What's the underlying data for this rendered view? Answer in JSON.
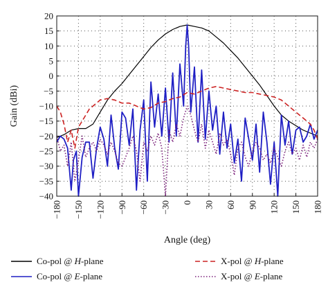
{
  "chart_data": {
    "type": "line",
    "xlabel": "Angle (deg)",
    "ylabel": "Gain (dBi)",
    "xlim": [
      -180,
      180
    ],
    "ylim": [
      -40,
      20
    ],
    "xticks": [
      "−180",
      "−150",
      "−120",
      "−90",
      "−60",
      "−30",
      "0",
      "30",
      "60",
      "90",
      "120",
      "150",
      "180"
    ],
    "yticks": [
      "20",
      "15",
      "10",
      "5",
      "0",
      "−5",
      "−10",
      "−15",
      "−20",
      "−25",
      "−30",
      "−35",
      "−40"
    ],
    "grid": true,
    "legend_position": "bottom",
    "series": [
      {
        "name": "Co-pol @ H-plane",
        "name_prefix": "Co-pol @ ",
        "name_italic": "H",
        "name_suffix": "-plane",
        "color": "#000000",
        "style": "solid",
        "x": [
          -180,
          -170,
          -160,
          -150,
          -140,
          -130,
          -120,
          -110,
          -100,
          -90,
          -80,
          -70,
          -60,
          -50,
          -40,
          -30,
          -20,
          -10,
          0,
          10,
          20,
          30,
          40,
          50,
          60,
          70,
          80,
          90,
          100,
          110,
          120,
          130,
          140,
          150,
          160,
          170,
          180
        ],
        "y": [
          -20.5,
          -19.5,
          -18,
          -17.5,
          -17.5,
          -16,
          -12,
          -8,
          -5,
          -2.5,
          0.5,
          3.5,
          6.5,
          9.5,
          12,
          14,
          15.5,
          16.5,
          17,
          16.5,
          16,
          15,
          13,
          11,
          8.5,
          6,
          3,
          0,
          -3,
          -6.5,
          -10,
          -13,
          -15,
          -16.5,
          -18,
          -19,
          -20
        ]
      },
      {
        "name": "Co-pol @ E-plane",
        "name_prefix": "Co-pol @ ",
        "name_italic": "E",
        "name_suffix": "-plane",
        "color": "#1f1fc4",
        "style": "solid",
        "x": [
          -180,
          -175,
          -170,
          -165,
          -160,
          -157,
          -153,
          -150,
          -145,
          -140,
          -135,
          -130,
          -125,
          -120,
          -115,
          -110,
          -105,
          -100,
          -95,
          -90,
          -85,
          -80,
          -75,
          -70,
          -65,
          -60,
          -55,
          -50,
          -45,
          -40,
          -35,
          -30,
          -25,
          -20,
          -15,
          -10,
          -5,
          -2,
          0,
          2,
          5,
          10,
          15,
          20,
          25,
          30,
          35,
          40,
          45,
          50,
          55,
          60,
          65,
          70,
          75,
          80,
          85,
          90,
          95,
          100,
          105,
          110,
          115,
          120,
          125,
          130,
          135,
          140,
          145,
          150,
          155,
          160,
          165,
          170,
          175,
          180
        ],
        "y": [
          -22,
          -20,
          -21,
          -24,
          -38,
          -28,
          -25,
          -40,
          -27,
          -22,
          -22,
          -34,
          -24,
          -17,
          -21,
          -30,
          -13,
          -24,
          -31,
          -12,
          -14,
          -23,
          -11,
          -38,
          -18,
          -8,
          -35,
          -2,
          -17,
          -6,
          -20,
          -4,
          -22,
          1,
          -20,
          4,
          -10,
          10,
          17,
          10,
          -12,
          3,
          -22,
          2,
          -21,
          -5,
          -18,
          -10,
          -26,
          -12,
          -24,
          -16,
          -29,
          -21,
          -35,
          -14,
          -21,
          -28,
          -16,
          -32,
          -12,
          -22,
          -36,
          -22,
          -40,
          -13,
          -23,
          -15,
          -26,
          -18,
          -17,
          -22,
          -20,
          -16,
          -21,
          -18
        ]
      },
      {
        "name": "X-pol @ H-plane",
        "name_prefix": "X-pol @ ",
        "name_italic": "H",
        "name_suffix": "-plane",
        "color": "#cc2222",
        "style": "dashed",
        "x": [
          -180,
          -175,
          -170,
          -165,
          -160,
          -155,
          -150,
          -145,
          -140,
          -135,
          -130,
          -120,
          -110,
          -100,
          -90,
          -80,
          -70,
          -60,
          -50,
          -40,
          -30,
          -20,
          -10,
          0,
          10,
          20,
          30,
          40,
          50,
          60,
          70,
          80,
          90,
          100,
          110,
          120,
          130,
          140,
          150,
          160,
          170,
          175,
          180
        ],
        "y": [
          -10,
          -12,
          -16,
          -22,
          -18,
          -24,
          -17,
          -15,
          -13,
          -11,
          -10,
          -8,
          -7.5,
          -8,
          -9,
          -9,
          -10,
          -11,
          -10.5,
          -9,
          -8.5,
          -7.5,
          -7,
          -5.5,
          -6,
          -5,
          -4,
          -3.5,
          -4,
          -4.5,
          -5,
          -5.5,
          -5.5,
          -6,
          -6.5,
          -7,
          -8,
          -10,
          -12,
          -14,
          -16,
          -18,
          -21
        ]
      },
      {
        "name": "X-pol @ E-plane",
        "name_prefix": "X-pol @ ",
        "name_italic": "E",
        "name_suffix": "-plane",
        "color": "#7a1f7a",
        "style": "dotted",
        "x": [
          -180,
          -175,
          -170,
          -165,
          -160,
          -155,
          -150,
          -145,
          -140,
          -135,
          -130,
          -125,
          -120,
          -115,
          -110,
          -105,
          -100,
          -95,
          -90,
          -85,
          -80,
          -75,
          -70,
          -65,
          -60,
          -55,
          -50,
          -45,
          -40,
          -35,
          -30,
          -25,
          -20,
          -15,
          -10,
          -5,
          0,
          5,
          10,
          15,
          20,
          25,
          30,
          35,
          40,
          45,
          50,
          55,
          60,
          65,
          70,
          75,
          80,
          85,
          90,
          95,
          100,
          105,
          110,
          115,
          120,
          125,
          130,
          135,
          140,
          145,
          150,
          155,
          160,
          165,
          170,
          175,
          180
        ],
        "y": [
          -20,
          -25,
          -23,
          -30,
          -22,
          -35,
          -28,
          -20,
          -27,
          -24,
          -22,
          -25,
          -21,
          -23,
          -26,
          -22,
          -25,
          -29,
          -30,
          -27,
          -24,
          -20,
          -25,
          -35,
          -22,
          -25,
          -20,
          -23,
          -19,
          -24,
          -40,
          -18,
          -22,
          -16,
          -20,
          -14,
          -10,
          -13,
          -18,
          -22,
          -16,
          -24,
          -18,
          -22,
          -26,
          -19,
          -23,
          -21,
          -26,
          -33,
          -24,
          -22,
          -27,
          -30,
          -25,
          -22,
          -24,
          -28,
          -26,
          -29,
          -24,
          -27,
          -30,
          -25,
          -22,
          -26,
          -24,
          -28,
          -23,
          -27,
          -22,
          -24,
          -21
        ]
      }
    ]
  }
}
